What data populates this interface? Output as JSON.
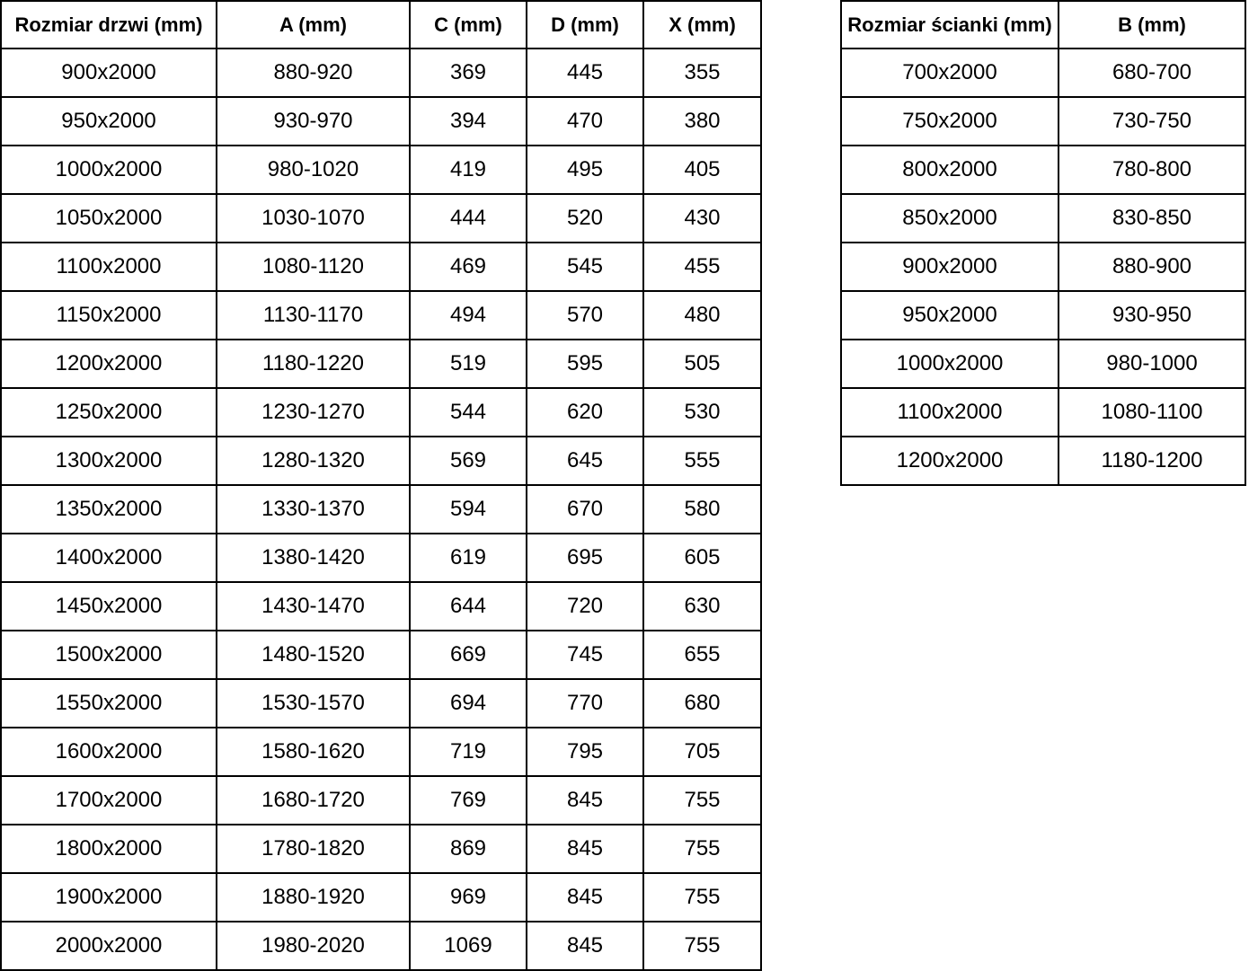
{
  "page": {
    "background_color": "#ffffff",
    "border_color": "#000000",
    "text_color": "#000000"
  },
  "door_table": {
    "headers": [
      "Rozmiar drzwi (mm)",
      "A (mm)",
      "C (mm)",
      "D (mm)",
      "X (mm)"
    ],
    "rows": [
      [
        "900x2000",
        "880-920",
        "369",
        "445",
        "355"
      ],
      [
        "950x2000",
        "930-970",
        "394",
        "470",
        "380"
      ],
      [
        "1000x2000",
        "980-1020",
        "419",
        "495",
        "405"
      ],
      [
        "1050x2000",
        "1030-1070",
        "444",
        "520",
        "430"
      ],
      [
        "1100x2000",
        "1080-1120",
        "469",
        "545",
        "455"
      ],
      [
        "1150x2000",
        "1130-1170",
        "494",
        "570",
        "480"
      ],
      [
        "1200x2000",
        "1180-1220",
        "519",
        "595",
        "505"
      ],
      [
        "1250x2000",
        "1230-1270",
        "544",
        "620",
        "530"
      ],
      [
        "1300x2000",
        "1280-1320",
        "569",
        "645",
        "555"
      ],
      [
        "1350x2000",
        "1330-1370",
        "594",
        "670",
        "580"
      ],
      [
        "1400x2000",
        "1380-1420",
        "619",
        "695",
        "605"
      ],
      [
        "1450x2000",
        "1430-1470",
        "644",
        "720",
        "630"
      ],
      [
        "1500x2000",
        "1480-1520",
        "669",
        "745",
        "655"
      ],
      [
        "1550x2000",
        "1530-1570",
        "694",
        "770",
        "680"
      ],
      [
        "1600x2000",
        "1580-1620",
        "719",
        "795",
        "705"
      ],
      [
        "1700x2000",
        "1680-1720",
        "769",
        "845",
        "755"
      ],
      [
        "1800x2000",
        "1780-1820",
        "869",
        "845",
        "755"
      ],
      [
        "1900x2000",
        "1880-1920",
        "969",
        "845",
        "755"
      ],
      [
        "2000x2000",
        "1980-2020",
        "1069",
        "845",
        "755"
      ]
    ]
  },
  "wall_table": {
    "headers": [
      "Rozmiar ścianki (mm)",
      "B (mm)"
    ],
    "rows": [
      [
        "700x2000",
        "680-700"
      ],
      [
        "750x2000",
        "730-750"
      ],
      [
        "800x2000",
        "780-800"
      ],
      [
        "850x2000",
        "830-850"
      ],
      [
        "900x2000",
        "880-900"
      ],
      [
        "950x2000",
        "930-950"
      ],
      [
        "1000x2000",
        "980-1000"
      ],
      [
        "1100x2000",
        "1080-1100"
      ],
      [
        "1200x2000",
        "1180-1200"
      ]
    ]
  }
}
